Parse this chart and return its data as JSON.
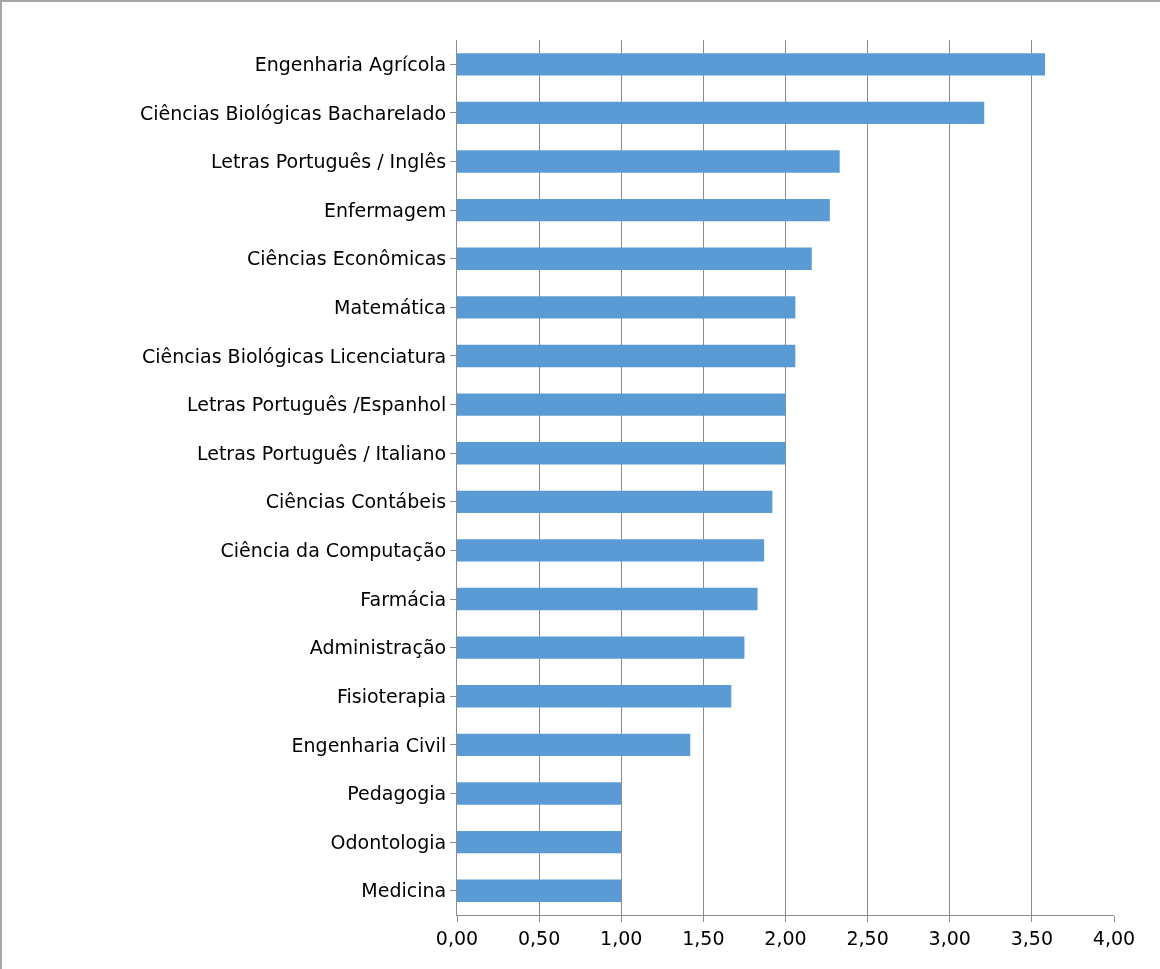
{
  "chart_data": {
    "type": "bar",
    "orientation": "horizontal",
    "categories": [
      "Engenharia Agrícola",
      "Ciências Biológicas Bacharelado",
      "Letras Português / Inglês",
      "Enfermagem",
      "Ciências Econômicas",
      "Matemática",
      "Ciências Biológicas Licenciatura",
      "Letras Português /Espanhol",
      "Letras Português / Italiano",
      "Ciências Contábeis",
      "Ciência da Computação",
      "Farmácia",
      "Administração",
      "Fisioterapia",
      "Engenharia Civil",
      "Pedagogia",
      "Odontologia",
      "Medicina"
    ],
    "values": [
      3.58,
      3.21,
      2.33,
      2.27,
      2.16,
      2.06,
      2.06,
      2.0,
      2.0,
      1.92,
      1.87,
      1.83,
      1.75,
      1.67,
      1.42,
      1.0,
      1.0,
      1.0
    ],
    "color": "#5b9bd5",
    "xlim": [
      0,
      4
    ],
    "xticks": [
      {
        "value": 0,
        "label": "0,00"
      },
      {
        "value": 0.5,
        "label": "0,50"
      },
      {
        "value": 1,
        "label": "1,00"
      },
      {
        "value": 1.5,
        "label": "1,50"
      },
      {
        "value": 2,
        "label": "2,00"
      },
      {
        "value": 2.5,
        "label": "2,50"
      },
      {
        "value": 3,
        "label": "3,00"
      },
      {
        "value": 3.5,
        "label": "3,50"
      },
      {
        "value": 4,
        "label": "4,00"
      }
    ],
    "grid": "x",
    "legend": false
  }
}
